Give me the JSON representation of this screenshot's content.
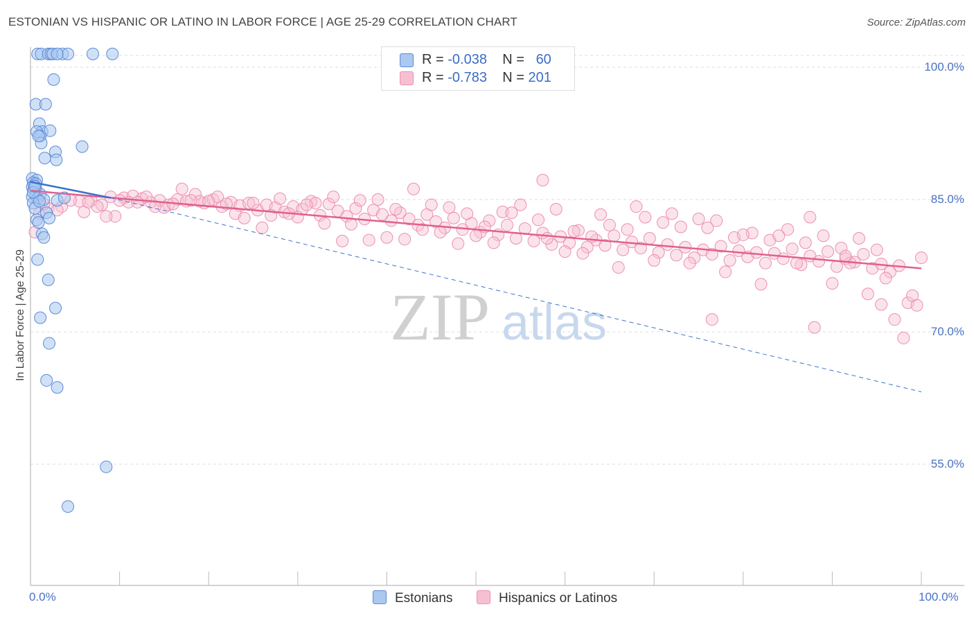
{
  "title": "ESTONIAN VS HISPANIC OR LATINO IN LABOR FORCE | AGE 25-29 CORRELATION CHART",
  "source": "Source: ZipAtlas.com",
  "watermark": {
    "zip": "ZIP",
    "atlas": "atlas"
  },
  "legend": {
    "rows": [
      {
        "r_label": "R =",
        "r_value": "-0.038",
        "n_label": "N =",
        "n_value": "60"
      },
      {
        "r_label": "R =",
        "r_value": "-0.783",
        "n_label": "N =",
        "n_value": "201"
      }
    ]
  },
  "bottom_legend": [
    "Estonians",
    "Hispanics or Latinos"
  ],
  "colors": {
    "estonians_fill": "#aac8f0",
    "estonians_stroke": "#5b8ad6",
    "estonians_line": "#3a72d0",
    "hispanic_fill": "#f7c0d2",
    "hispanic_stroke": "#ec8fb0",
    "hispanic_line": "#e0608e",
    "tick_text": "#4a72c4",
    "grid": "#dddddd"
  },
  "chart_data": {
    "type": "scatter",
    "title": "ESTONIAN VS HISPANIC OR LATINO IN LABOR FORCE | AGE 25-29 CORRELATION CHART",
    "xlabel": "",
    "ylabel": "In Labor Force | Age 25-29",
    "xlim": [
      0,
      100
    ],
    "ylim": [
      40.5,
      101.5
    ],
    "x_tick_labels": [
      "0.0%",
      "100.0%"
    ],
    "y_ticks": [
      {
        "value": 100,
        "label": "100.0%"
      },
      {
        "value": 85,
        "label": "85.0%"
      },
      {
        "value": 70,
        "label": "70.0%"
      },
      {
        "value": 55,
        "label": "55.0%"
      }
    ],
    "grid": "horizontal dashed",
    "legend_position": "top-center",
    "series": [
      {
        "name": "Estonians",
        "r": -0.038,
        "n": 60,
        "trend_solid": [
          [
            0,
            87.0
          ],
          [
            9,
            85.2
          ]
        ],
        "trend_dashed": [
          [
            9,
            85.2
          ],
          [
            100,
            63.2
          ]
        ],
        "points": [
          [
            0.8,
            101.5
          ],
          [
            1.2,
            101.5
          ],
          [
            2.0,
            101.5
          ],
          [
            2.3,
            101.5
          ],
          [
            2.5,
            101.5
          ],
          [
            3.6,
            101.5
          ],
          [
            4.2,
            101.5
          ],
          [
            3.0,
            101.5
          ],
          [
            7.0,
            101.5
          ],
          [
            9.2,
            101.5
          ],
          [
            2.6,
            98.6
          ],
          [
            0.6,
            95.8
          ],
          [
            1.7,
            95.8
          ],
          [
            1.0,
            93.6
          ],
          [
            1.3,
            92.7
          ],
          [
            0.7,
            92.7
          ],
          [
            2.2,
            92.8
          ],
          [
            1.1,
            92.2
          ],
          [
            1.2,
            91.4
          ],
          [
            0.9,
            92.2
          ],
          [
            5.8,
            91.0
          ],
          [
            2.8,
            90.4
          ],
          [
            1.6,
            89.7
          ],
          [
            2.9,
            89.5
          ],
          [
            0.2,
            87.4
          ],
          [
            0.7,
            87.2
          ],
          [
            0.3,
            86.9
          ],
          [
            0.6,
            86.3
          ],
          [
            0.5,
            86.0
          ],
          [
            0.4,
            86.6
          ],
          [
            0.2,
            86.4
          ],
          [
            0.4,
            86.2
          ],
          [
            0.2,
            85.3
          ],
          [
            0.6,
            85.5
          ],
          [
            0.8,
            85.1
          ],
          [
            1.1,
            85.6
          ],
          [
            1.5,
            85.0
          ],
          [
            0.3,
            84.6
          ],
          [
            0.5,
            84.0
          ],
          [
            3.0,
            84.9
          ],
          [
            3.8,
            85.2
          ],
          [
            1.8,
            83.5
          ],
          [
            2.1,
            82.9
          ],
          [
            0.7,
            82.7
          ],
          [
            1.3,
            81.1
          ],
          [
            1.5,
            80.7
          ],
          [
            0.8,
            78.2
          ],
          [
            2.0,
            75.9
          ],
          [
            1.1,
            71.6
          ],
          [
            2.8,
            72.7
          ],
          [
            2.1,
            68.7
          ],
          [
            1.8,
            64.5
          ],
          [
            3.0,
            63.7
          ],
          [
            8.5,
            54.7
          ],
          [
            4.2,
            50.2
          ],
          [
            0.6,
            86.8
          ],
          [
            1.0,
            84.8
          ],
          [
            0.9,
            82.4
          ],
          [
            0.3,
            85.8
          ],
          [
            0.5,
            86.5
          ]
        ]
      },
      {
        "name": "Hispanics or Latinos",
        "r": -0.783,
        "n": 201,
        "trend_solid": [
          [
            0,
            86.0
          ],
          [
            100,
            77.2
          ]
        ],
        "points": [
          [
            0.5,
            81.3
          ],
          [
            1.0,
            83.4
          ],
          [
            2.0,
            84.0
          ],
          [
            3.5,
            84.2
          ],
          [
            5.5,
            84.8
          ],
          [
            6.8,
            84.9
          ],
          [
            8.0,
            84.4
          ],
          [
            9.0,
            85.3
          ],
          [
            10.5,
            85.2
          ],
          [
            11.5,
            85.4
          ],
          [
            12.5,
            85.1
          ],
          [
            13.5,
            84.7
          ],
          [
            14.5,
            84.9
          ],
          [
            15.5,
            84.4
          ],
          [
            16.5,
            85.0
          ],
          [
            17.5,
            84.8
          ],
          [
            18.5,
            85.6
          ],
          [
            19.5,
            84.6
          ],
          [
            20.5,
            85.0
          ],
          [
            21.5,
            84.2
          ],
          [
            22.5,
            84.7
          ],
          [
            23.5,
            84.3
          ],
          [
            24.5,
            84.6
          ],
          [
            25.5,
            83.8
          ],
          [
            26.5,
            84.4
          ],
          [
            27.5,
            84.1
          ],
          [
            28.5,
            83.6
          ],
          [
            29.5,
            84.2
          ],
          [
            30.5,
            83.9
          ],
          [
            31.5,
            84.8
          ],
          [
            32.5,
            83.2
          ],
          [
            33.5,
            84.5
          ],
          [
            34.5,
            83.7
          ],
          [
            35.5,
            83.1
          ],
          [
            36.5,
            84.0
          ],
          [
            37.5,
            82.8
          ],
          [
            38.5,
            83.8
          ],
          [
            39.5,
            83.3
          ],
          [
            40.5,
            82.6
          ],
          [
            41.5,
            83.5
          ],
          [
            42.5,
            82.8
          ],
          [
            43.5,
            82.1
          ],
          [
            44.5,
            83.3
          ],
          [
            45.5,
            82.5
          ],
          [
            46.5,
            81.8
          ],
          [
            47.5,
            82.9
          ],
          [
            48.5,
            81.6
          ],
          [
            49.5,
            82.3
          ],
          [
            50.5,
            81.3
          ],
          [
            51.5,
            82.6
          ],
          [
            52.5,
            81.0
          ],
          [
            53.5,
            82.1
          ],
          [
            54.5,
            80.6
          ],
          [
            55.5,
            81.7
          ],
          [
            56.5,
            80.3
          ],
          [
            57.5,
            81.2
          ],
          [
            58.5,
            79.9
          ],
          [
            59.5,
            80.8
          ],
          [
            60.5,
            80.1
          ],
          [
            61.5,
            81.5
          ],
          [
            62.5,
            79.6
          ],
          [
            63.5,
            80.4
          ],
          [
            64.5,
            79.8
          ],
          [
            65.5,
            80.9
          ],
          [
            66.5,
            79.3
          ],
          [
            67.5,
            80.2
          ],
          [
            68.5,
            79.5
          ],
          [
            69.5,
            80.6
          ],
          [
            70.5,
            79.0
          ],
          [
            71.5,
            79.9
          ],
          [
            72.5,
            78.7
          ],
          [
            73.5,
            79.6
          ],
          [
            74.5,
            78.4
          ],
          [
            75.5,
            79.3
          ],
          [
            76.5,
            78.8
          ],
          [
            77.5,
            79.7
          ],
          [
            78.5,
            78.1
          ],
          [
            79.5,
            79.2
          ],
          [
            80.5,
            78.5
          ],
          [
            81.5,
            79.0
          ],
          [
            82.5,
            77.8
          ],
          [
            83.5,
            78.9
          ],
          [
            84.5,
            78.3
          ],
          [
            85.5,
            79.4
          ],
          [
            86.5,
            77.6
          ],
          [
            87.5,
            78.6
          ],
          [
            88.5,
            78.0
          ],
          [
            89.5,
            79.1
          ],
          [
            90.5,
            77.4
          ],
          [
            91.5,
            78.3
          ],
          [
            92.5,
            77.9
          ],
          [
            93.5,
            78.8
          ],
          [
            94.5,
            77.2
          ],
          [
            95.5,
            77.7
          ],
          [
            96.5,
            76.8
          ],
          [
            97.5,
            77.5
          ],
          [
            98.5,
            73.3
          ],
          [
            99.0,
            74.1
          ],
          [
            99.5,
            73.0
          ],
          [
            100.0,
            78.4
          ],
          [
            1.5,
            84.5
          ],
          [
            3.0,
            83.8
          ],
          [
            4.5,
            84.9
          ],
          [
            6.0,
            83.6
          ],
          [
            7.5,
            84.2
          ],
          [
            9.5,
            83.1
          ],
          [
            11.0,
            84.7
          ],
          [
            13.0,
            85.3
          ],
          [
            15.0,
            84.1
          ],
          [
            17.0,
            86.2
          ],
          [
            19.0,
            84.8
          ],
          [
            21.0,
            85.3
          ],
          [
            23.0,
            83.4
          ],
          [
            24.0,
            82.9
          ],
          [
            26.0,
            81.8
          ],
          [
            28.0,
            85.1
          ],
          [
            30.0,
            83.0
          ],
          [
            32.0,
            84.6
          ],
          [
            34.0,
            85.3
          ],
          [
            36.0,
            82.2
          ],
          [
            37.0,
            84.9
          ],
          [
            39.0,
            85.0
          ],
          [
            41.0,
            83.9
          ],
          [
            43.0,
            86.2
          ],
          [
            45.0,
            84.4
          ],
          [
            47.0,
            84.1
          ],
          [
            49.0,
            83.4
          ],
          [
            51.0,
            81.9
          ],
          [
            53.0,
            83.6
          ],
          [
            55.0,
            84.4
          ],
          [
            57.0,
            82.7
          ],
          [
            59.0,
            83.9
          ],
          [
            61.0,
            81.4
          ],
          [
            63.0,
            80.8
          ],
          [
            65.0,
            82.1
          ],
          [
            67.0,
            81.6
          ],
          [
            69.0,
            83.0
          ],
          [
            71.0,
            82.4
          ],
          [
            73.0,
            81.9
          ],
          [
            75.0,
            82.8
          ],
          [
            77.0,
            82.6
          ],
          [
            79.0,
            80.7
          ],
          [
            81.0,
            81.2
          ],
          [
            83.0,
            80.4
          ],
          [
            85.0,
            81.6
          ],
          [
            87.0,
            80.1
          ],
          [
            89.0,
            80.9
          ],
          [
            91.0,
            79.5
          ],
          [
            93.0,
            80.6
          ],
          [
            95.0,
            79.3
          ],
          [
            42.0,
            80.5
          ],
          [
            46.0,
            81.3
          ],
          [
            50.0,
            80.9
          ],
          [
            54.0,
            83.5
          ],
          [
            58.0,
            80.6
          ],
          [
            62.0,
            78.9
          ],
          [
            66.0,
            77.3
          ],
          [
            70.0,
            78.1
          ],
          [
            74.0,
            77.8
          ],
          [
            78.0,
            76.8
          ],
          [
            82.0,
            75.4
          ],
          [
            86.0,
            77.8
          ],
          [
            90.0,
            75.5
          ],
          [
            94.0,
            74.3
          ],
          [
            96.0,
            76.1
          ],
          [
            97.0,
            71.4
          ],
          [
            98.0,
            69.3
          ],
          [
            95.5,
            73.1
          ],
          [
            92.0,
            77.8
          ],
          [
            88.0,
            70.5
          ],
          [
            76.5,
            71.4
          ],
          [
            60.0,
            79.1
          ],
          [
            64.0,
            83.3
          ],
          [
            68.0,
            84.2
          ],
          [
            72.0,
            83.4
          ],
          [
            76.0,
            81.8
          ],
          [
            80.0,
            81.0
          ],
          [
            84.0,
            80.9
          ],
          [
            87.5,
            83.0
          ],
          [
            91.5,
            78.6
          ],
          [
            57.5,
            87.2
          ],
          [
            52.0,
            80.1
          ],
          [
            48.0,
            80.0
          ],
          [
            44.0,
            81.6
          ],
          [
            40.0,
            80.7
          ],
          [
            38.0,
            80.4
          ],
          [
            35.0,
            80.3
          ],
          [
            33.0,
            82.3
          ],
          [
            31.0,
            84.4
          ],
          [
            29.0,
            83.4
          ],
          [
            27.0,
            83.2
          ],
          [
            25.0,
            84.6
          ],
          [
            22.0,
            84.5
          ],
          [
            20.0,
            84.8
          ],
          [
            18.0,
            84.9
          ],
          [
            16.0,
            84.5
          ],
          [
            14.0,
            84.2
          ],
          [
            12.0,
            84.7
          ],
          [
            10.0,
            84.9
          ],
          [
            8.5,
            83.1
          ],
          [
            6.5,
            84.7
          ]
        ]
      }
    ]
  }
}
